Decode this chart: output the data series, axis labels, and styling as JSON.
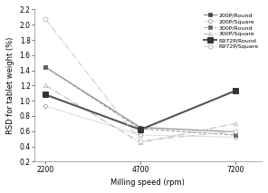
{
  "x": [
    2200,
    4700,
    7200
  ],
  "series": [
    {
      "label": "200P/Round",
      "y": [
        1.44,
        0.65,
        0.59
      ],
      "color": "#888888",
      "linestyle": "-",
      "marker": "s",
      "markersize": 3,
      "linewidth": 0.8,
      "markerfacecolor": "#444444",
      "markeredgecolor": "#444444",
      "markeredgewidth": 0.5
    },
    {
      "label": "200P/Square",
      "y": [
        0.93,
        0.55,
        0.52
      ],
      "color": "#aaaaaa",
      "linestyle": ":",
      "marker": "o",
      "markersize": 3,
      "linewidth": 0.8,
      "markerfacecolor": "white",
      "markeredgecolor": "#888888",
      "markeredgewidth": 0.5
    },
    {
      "label": "300P/Round",
      "y": [
        1.44,
        0.63,
        0.55
      ],
      "color": "#999999",
      "linestyle": "--",
      "marker": "s",
      "markersize": 3,
      "linewidth": 0.8,
      "markerfacecolor": "#666666",
      "markeredgecolor": "#666666",
      "markeredgewidth": 0.5
    },
    {
      "label": "300P/Square",
      "y": [
        1.2,
        0.45,
        0.7
      ],
      "color": "#bbbbbb",
      "linestyle": "-.",
      "marker": "^",
      "markersize": 3,
      "linewidth": 0.8,
      "markerfacecolor": "white",
      "markeredgecolor": "#aaaaaa",
      "markeredgewidth": 0.5
    },
    {
      "label": "R972P/Round",
      "y": [
        1.08,
        0.62,
        1.13
      ],
      "color": "#555555",
      "linestyle": "-",
      "marker": "s",
      "markersize": 4,
      "linewidth": 1.5,
      "markerfacecolor": "#333333",
      "markeredgecolor": "#333333",
      "markeredgewidth": 0.7
    },
    {
      "label": "R972P/Square",
      "y": [
        2.07,
        0.47,
        0.6
      ],
      "color": "#cccccc",
      "linestyle": "-.",
      "marker": "o",
      "markersize": 3.5,
      "linewidth": 0.8,
      "markerfacecolor": "white",
      "markeredgecolor": "#aaaaaa",
      "markeredgewidth": 0.5
    }
  ],
  "xlabel": "Milling speed (rpm)",
  "ylabel": "RSD for tablet weight (%)",
  "ylim": [
    0.2,
    2.2
  ],
  "yticks": [
    0.2,
    0.4,
    0.6,
    0.8,
    1.0,
    1.2,
    1.4,
    1.6,
    1.8,
    2.0,
    2.2
  ],
  "xticks": [
    2200,
    4700,
    7200
  ],
  "xlim": [
    1900,
    7900
  ],
  "background_color": "#ffffff"
}
